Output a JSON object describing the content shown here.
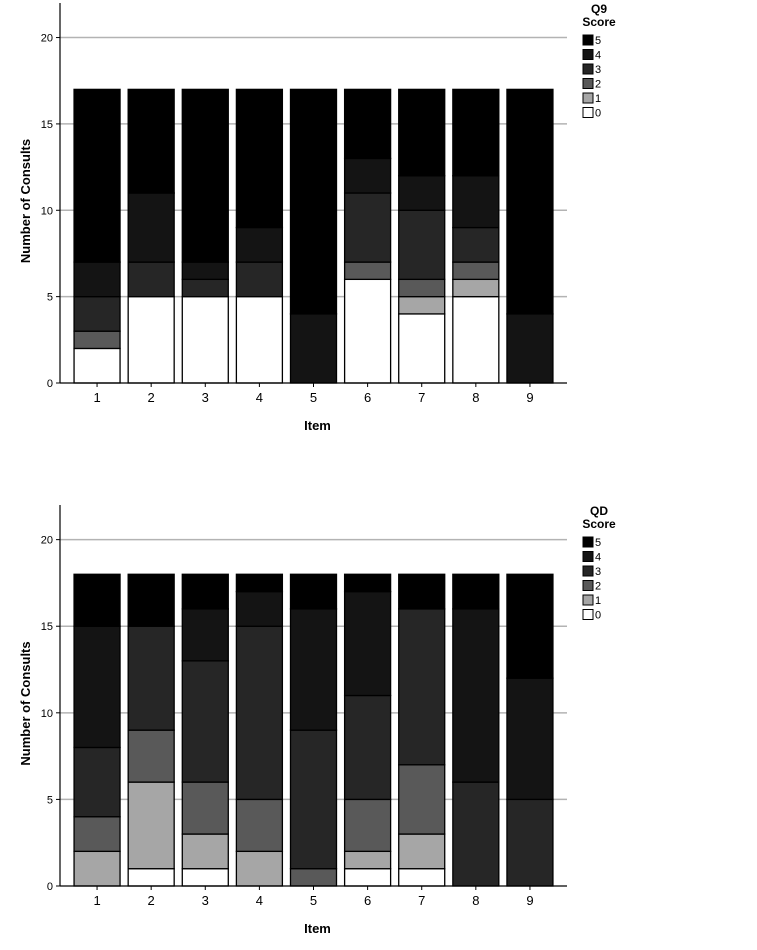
{
  "chart_data": [
    {
      "type": "bar",
      "stacked": true,
      "xlabel": "Item",
      "ylabel": "Number of Consults",
      "ylim": [
        0,
        22
      ],
      "yticks": [
        0,
        5,
        10,
        15,
        20
      ],
      "grid": true,
      "legend_title": [
        "Q9",
        "Score"
      ],
      "legend_position": "top-right",
      "categories": [
        "1",
        "2",
        "3",
        "4",
        "5",
        "6",
        "7",
        "8",
        "9"
      ],
      "series": [
        {
          "name": "0",
          "color": "#ffffff",
          "values": [
            2,
            5,
            5,
            5,
            0,
            6,
            4,
            5,
            0
          ]
        },
        {
          "name": "1",
          "color": "#a6a6a6",
          "values": [
            0,
            0,
            0,
            0,
            0,
            0,
            1,
            1,
            0
          ]
        },
        {
          "name": "2",
          "color": "#595959",
          "values": [
            1,
            0,
            0,
            0,
            0,
            1,
            1,
            1,
            0
          ]
        },
        {
          "name": "3",
          "color": "#262626",
          "values": [
            2,
            2,
            1,
            2,
            0,
            4,
            4,
            2,
            0
          ]
        },
        {
          "name": "4",
          "color": "#141414",
          "values": [
            2,
            4,
            1,
            2,
            4,
            2,
            2,
            3,
            4
          ]
        },
        {
          "name": "5",
          "color": "#000000",
          "values": [
            10,
            6,
            10,
            8,
            13,
            4,
            5,
            5,
            13
          ]
        }
      ]
    },
    {
      "type": "bar",
      "stacked": true,
      "xlabel": "Item",
      "ylabel": "Number of Consults",
      "ylim": [
        0,
        22
      ],
      "yticks": [
        0,
        5,
        10,
        15,
        20
      ],
      "grid": true,
      "legend_title": [
        "QD",
        "Score"
      ],
      "legend_position": "top-right",
      "categories": [
        "1",
        "2",
        "3",
        "4",
        "5",
        "6",
        "7",
        "8",
        "9"
      ],
      "series": [
        {
          "name": "0",
          "color": "#ffffff",
          "values": [
            0,
            1,
            1,
            0,
            0,
            1,
            1,
            0,
            0
          ]
        },
        {
          "name": "1",
          "color": "#a6a6a6",
          "values": [
            2,
            5,
            2,
            2,
            0,
            1,
            2,
            0,
            0
          ]
        },
        {
          "name": "2",
          "color": "#595959",
          "values": [
            2,
            3,
            3,
            3,
            1,
            3,
            4,
            0,
            0
          ]
        },
        {
          "name": "3",
          "color": "#262626",
          "values": [
            4,
            6,
            7,
            10,
            8,
            6,
            9,
            6,
            5
          ]
        },
        {
          "name": "4",
          "color": "#141414",
          "values": [
            7,
            0,
            3,
            2,
            7,
            6,
            0,
            10,
            7
          ]
        },
        {
          "name": "5",
          "color": "#000000",
          "values": [
            3,
            3,
            2,
            1,
            2,
            1,
            2,
            2,
            6
          ]
        }
      ]
    }
  ]
}
